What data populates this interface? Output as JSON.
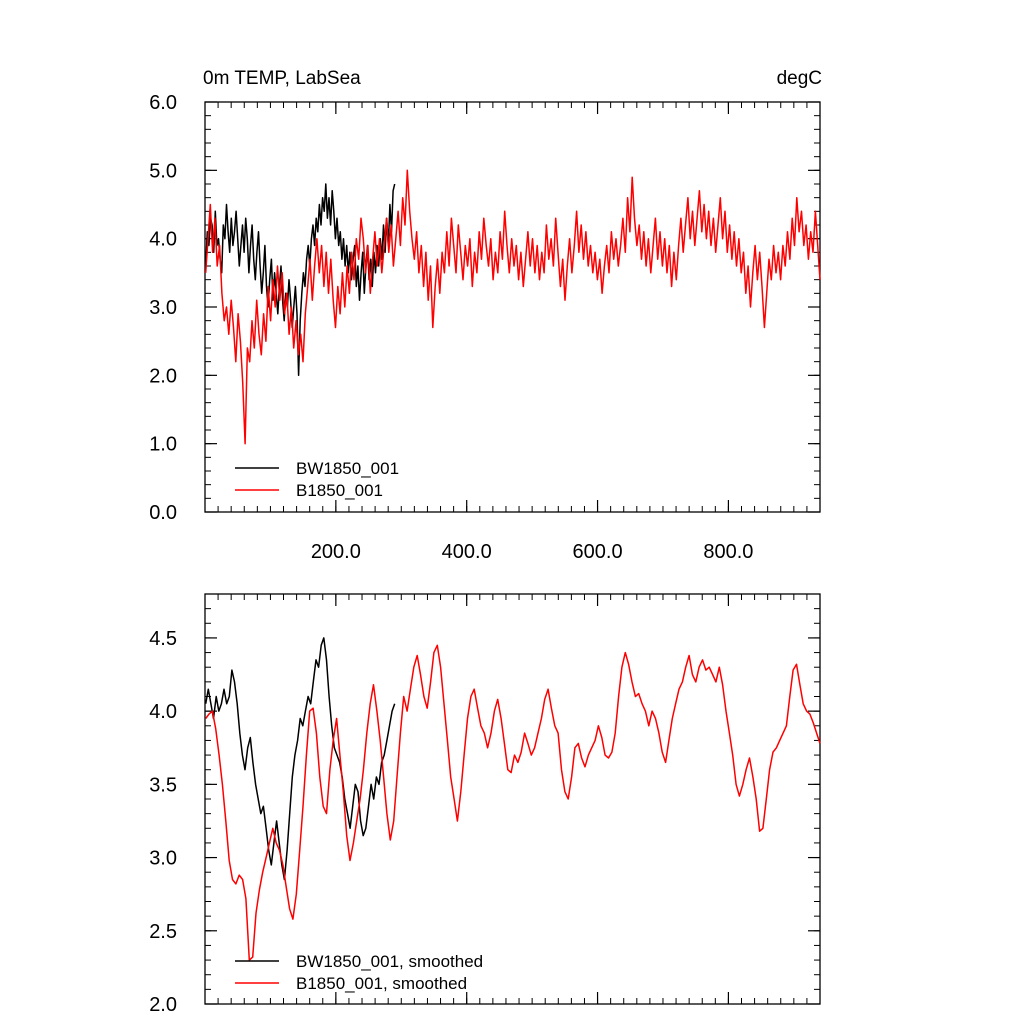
{
  "chart_data": [
    {
      "type": "line",
      "title_left": "0m TEMP, LabSea",
      "title_right": "degC",
      "xlabel": "",
      "ylabel": "",
      "xlim": [
        0,
        940
      ],
      "ylim": [
        0,
        6
      ],
      "x_ticks": [
        200,
        400,
        600,
        800
      ],
      "x_tick_labels": [
        "200.0",
        "400.0",
        "600.0",
        "800.0"
      ],
      "y_ticks": [
        0,
        1,
        2,
        3,
        4,
        5,
        6
      ],
      "y_tick_labels": [
        "0.0",
        "1.0",
        "2.0",
        "3.0",
        "4.0",
        "5.0",
        "6.0"
      ],
      "legend_position": "bottom-left",
      "series": [
        {
          "name": "BW1850_001",
          "color": "#000000",
          "x_start": 1,
          "values": [
            3.6,
            4.1,
            3.9,
            4.3,
            4.2,
            3.8,
            4.4,
            3.9,
            4.0,
            3.7,
            3.5,
            4.2,
            4.0,
            4.5,
            4.1,
            3.8,
            4.3,
            3.9,
            4.1,
            4.4,
            4.0,
            3.6,
            3.9,
            4.2,
            3.8,
            4.3,
            4.0,
            3.5,
            3.9,
            4.2,
            3.7,
            3.4,
            3.8,
            4.1,
            3.6,
            3.2,
            3.5,
            3.9,
            3.3,
            3.0,
            3.4,
            3.7,
            3.1,
            3.5,
            3.2,
            2.9,
            3.3,
            3.6,
            3.1,
            2.8,
            3.2,
            3.0,
            3.4,
            3.1,
            2.7,
            3.0,
            3.3,
            2.9,
            2.0,
            2.8,
            3.2,
            3.5,
            3.3,
            3.7,
            3.9,
            3.6,
            4.0,
            4.2,
            3.9,
            4.3,
            4.1,
            4.5,
            4.2,
            4.6,
            4.4,
            4.8,
            4.3,
            4.6,
            4.2,
            4.7,
            4.4,
            4.0,
            4.3,
            3.9,
            4.1,
            3.7,
            4.0,
            3.6,
            3.9,
            3.5,
            3.8,
            3.4,
            3.7,
            3.9,
            3.3,
            3.6,
            3.1,
            3.5,
            3.8,
            3.2,
            3.6,
            3.9,
            3.4,
            3.7,
            3.3,
            3.8,
            3.5,
            3.9,
            3.6,
            4.0,
            3.7,
            4.2,
            3.8,
            4.3,
            3.9,
            4.5,
            4.1,
            4.7,
            4.8
          ]
        },
        {
          "name": "B1850_001",
          "color": "#ff0000",
          "x_start": 1,
          "values": [
            3.5,
            4.0,
            4.5,
            3.8,
            4.3,
            3.6,
            3.9,
            3.2,
            2.8,
            3.0,
            2.6,
            3.1,
            2.7,
            2.2,
            2.9,
            2.5,
            1.9,
            1.0,
            2.4,
            2.2,
            2.8,
            2.4,
            3.1,
            2.6,
            2.3,
            2.9,
            2.5,
            3.3,
            2.8,
            3.4,
            3.0,
            3.6,
            3.1,
            3.5,
            2.9,
            3.2,
            2.6,
            3.0,
            2.4,
            2.8,
            2.3,
            2.6,
            2.2,
            2.9,
            3.3,
            3.7,
            3.1,
            3.6,
            4.0,
            3.5,
            3.9,
            3.3,
            3.8,
            3.2,
            3.7,
            3.1,
            2.7,
            3.3,
            2.9,
            3.5,
            3.0,
            3.6,
            3.2,
            3.8,
            3.4,
            4.0,
            3.7,
            4.3,
            4.0,
            3.5,
            3.9,
            3.2,
            3.7,
            4.1,
            3.6,
            4.0,
            3.5,
            3.9,
            4.3,
            3.8,
            4.2,
            3.6,
            4.0,
            4.4,
            3.9,
            4.6,
            4.2,
            5.0,
            4.4,
            4.0,
            3.7,
            4.1,
            3.5,
            3.9,
            3.3,
            3.8,
            3.1,
            3.6,
            2.7,
            3.3,
            3.7,
            3.2,
            3.8,
            3.5,
            4.1,
            3.6,
            4.3,
            3.9,
            3.5,
            4.2,
            3.8,
            3.4,
            3.9,
            3.6,
            4.0,
            3.3,
            3.8,
            3.5,
            4.1,
            3.7,
            4.3,
            3.9,
            3.6,
            4.0,
            3.4,
            3.8,
            3.5,
            4.1,
            3.7,
            4.4,
            3.9,
            3.5,
            4.0,
            3.6,
            3.9,
            3.4,
            3.8,
            3.3,
            3.7,
            4.1,
            3.6,
            4.0,
            3.5,
            3.9,
            3.4,
            3.8,
            3.5,
            4.2,
            3.7,
            4.0,
            3.6,
            4.3,
            3.8,
            3.3,
            3.7,
            3.1,
            3.6,
            4.0,
            3.5,
            3.9,
            4.4,
            3.8,
            4.2,
            3.7,
            4.1,
            3.6,
            3.9,
            3.5,
            3.8,
            3.4,
            3.7,
            3.2,
            3.6,
            3.9,
            3.5,
            4.1,
            3.7,
            4.0,
            3.6,
            3.9,
            4.3,
            3.8,
            4.6,
            4.1,
            4.9,
            4.3,
            3.9,
            4.2,
            3.7,
            4.1,
            3.6,
            4.0,
            3.5,
            3.9,
            4.3,
            3.7,
            4.1,
            3.6,
            4.0,
            3.5,
            3.9,
            3.3,
            3.8,
            3.4,
            3.9,
            4.3,
            3.8,
            4.2,
            4.6,
            4.0,
            4.4,
            3.9,
            4.3,
            4.7,
            4.1,
            4.5,
            4.0,
            4.4,
            3.9,
            4.3,
            3.8,
            4.2,
            4.6,
            4.0,
            4.4,
            3.8,
            4.2,
            3.7,
            4.1,
            3.6,
            4.0,
            3.5,
            3.8,
            3.2,
            3.6,
            3.0,
            3.5,
            3.9,
            3.4,
            3.8,
            3.3,
            2.7,
            3.2,
            3.7,
            3.4,
            3.9,
            3.5,
            3.8,
            3.4,
            3.9,
            3.6,
            4.1,
            3.7,
            4.3,
            3.9,
            4.6,
            4.1,
            4.4,
            3.9,
            4.2,
            3.7,
            4.1,
            3.8,
            4.4,
            3.9,
            3.4
          ]
        }
      ],
      "legend": [
        "BW1850_001",
        "B1850_001"
      ]
    },
    {
      "type": "line",
      "title": "",
      "xlabel": "",
      "ylabel": "",
      "xlim": [
        0,
        940
      ],
      "ylim": [
        2.0,
        4.8
      ],
      "y_ticks": [
        2.0,
        2.5,
        3.0,
        3.5,
        4.0,
        4.5
      ],
      "y_tick_labels": [
        "2.0",
        "2.5",
        "3.0",
        "3.5",
        "4.0",
        "4.5"
      ],
      "legend_position": "bottom-left",
      "series": [
        {
          "name": "BW1850_001, smoothed",
          "color": "#000000",
          "x_start": 1,
          "values": [
            4.05,
            4.15,
            4.05,
            3.95,
            4.1,
            4.0,
            4.05,
            4.15,
            4.05,
            4.1,
            4.28,
            4.2,
            4.05,
            3.85,
            3.7,
            3.6,
            3.75,
            3.82,
            3.65,
            3.5,
            3.4,
            3.3,
            3.35,
            3.2,
            3.05,
            2.95,
            3.1,
            3.25,
            3.1,
            2.95,
            2.85,
            3.05,
            3.3,
            3.55,
            3.7,
            3.8,
            3.95,
            3.9,
            4.0,
            4.1,
            4.05,
            4.2,
            4.35,
            4.3,
            4.45,
            4.5,
            4.35,
            4.1,
            3.9,
            3.75,
            3.7,
            3.65,
            3.55,
            3.4,
            3.3,
            3.2,
            3.35,
            3.5,
            3.45,
            3.25,
            3.15,
            3.2,
            3.35,
            3.5,
            3.4,
            3.55,
            3.5,
            3.65,
            3.7,
            3.8,
            3.9,
            4.0,
            4.05
          ]
        },
        {
          "name": "B1850_001, smoothed",
          "color": "#ff0000",
          "x_start": 1,
          "values": [
            3.95,
            3.98,
            4.0,
            3.88,
            3.7,
            3.5,
            3.25,
            2.98,
            2.85,
            2.82,
            2.88,
            2.85,
            2.72,
            2.3,
            2.32,
            2.62,
            2.78,
            2.9,
            3.0,
            3.1,
            3.2,
            3.1,
            3.05,
            2.95,
            2.8,
            2.65,
            2.58,
            2.75,
            3.05,
            3.35,
            3.7,
            4.0,
            4.02,
            3.85,
            3.55,
            3.35,
            3.3,
            3.6,
            3.8,
            3.95,
            3.7,
            3.45,
            3.15,
            2.98,
            3.1,
            3.25,
            3.4,
            3.6,
            3.85,
            4.05,
            4.18,
            4.0,
            3.8,
            3.55,
            3.3,
            3.12,
            3.25,
            3.55,
            3.85,
            4.1,
            4.0,
            4.15,
            4.3,
            4.38,
            4.25,
            4.1,
            4.02,
            4.2,
            4.4,
            4.45,
            4.3,
            4.05,
            3.8,
            3.55,
            3.4,
            3.25,
            3.45,
            3.7,
            3.95,
            4.1,
            4.15,
            4.02,
            3.9,
            3.85,
            3.75,
            3.85,
            4.0,
            4.08,
            3.95,
            3.78,
            3.6,
            3.58,
            3.7,
            3.65,
            3.72,
            3.85,
            3.78,
            3.7,
            3.75,
            3.85,
            3.95,
            4.08,
            4.15,
            4.02,
            3.9,
            3.85,
            3.6,
            3.45,
            3.4,
            3.55,
            3.75,
            3.78,
            3.68,
            3.62,
            3.7,
            3.75,
            3.8,
            3.9,
            3.82,
            3.7,
            3.68,
            3.72,
            3.85,
            4.1,
            4.3,
            4.4,
            4.32,
            4.2,
            4.1,
            4.12,
            4.05,
            4.0,
            3.9,
            4.0,
            3.95,
            3.85,
            3.72,
            3.65,
            3.8,
            3.95,
            4.05,
            4.15,
            4.2,
            4.3,
            4.38,
            4.25,
            4.2,
            4.3,
            4.35,
            4.28,
            4.3,
            4.25,
            4.2,
            4.3,
            4.18,
            4.0,
            3.85,
            3.7,
            3.5,
            3.42,
            3.5,
            3.6,
            3.68,
            3.55,
            3.4,
            3.18,
            3.2,
            3.4,
            3.6,
            3.72,
            3.75,
            3.8,
            3.85,
            3.9,
            4.1,
            4.28,
            4.32,
            4.18,
            4.05,
            4.0,
            3.98,
            3.92,
            3.85,
            3.78
          ]
        }
      ],
      "legend": [
        "BW1850_001, smoothed",
        "B1850_001, smoothed"
      ]
    }
  ]
}
